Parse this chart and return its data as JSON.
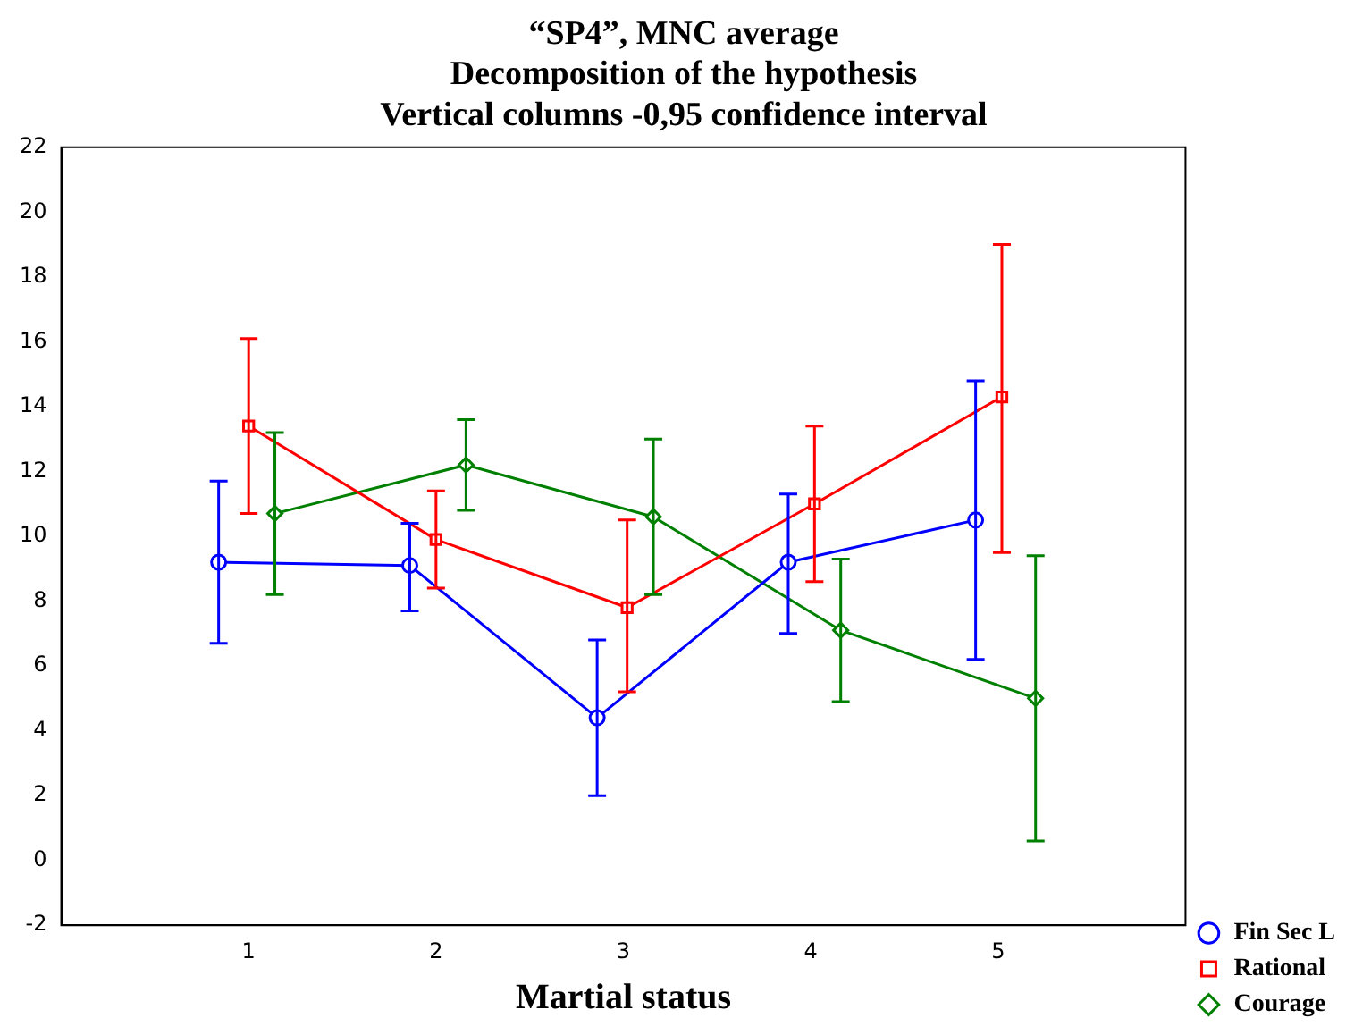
{
  "chart_data": {
    "type": "line",
    "title": "“SP4”, MNC average\nDecomposition of the hypothesis\nVertical columns -0,95 confidence interval",
    "xlabel": "Martial status",
    "xlim": [
      0,
      6
    ],
    "xticks": [
      1,
      2,
      3,
      4,
      5
    ],
    "ylim": [
      -2,
      22
    ],
    "yticks": [
      -2,
      0,
      2,
      4,
      6,
      8,
      10,
      12,
      14,
      16,
      18,
      20,
      22
    ],
    "legend": "bottom right",
    "series": [
      {
        "name": "Fin Sec L",
        "color": "#0000ff",
        "marker": "circle",
        "x": [
          0.84,
          1.86,
          2.86,
          3.88,
          4.88
        ],
        "values": [
          9.2,
          9.1,
          4.4,
          9.2,
          10.5
        ],
        "errors": [
          [
            6.7,
            11.7
          ],
          [
            7.7,
            10.4
          ],
          [
            2.0,
            6.8
          ],
          [
            7.0,
            11.3
          ],
          [
            6.2,
            14.8
          ]
        ]
      },
      {
        "name": "Rational",
        "color": "#ff0000",
        "marker": "square",
        "x": [
          1.0,
          2.0,
          3.02,
          4.02,
          5.02
        ],
        "values": [
          13.4,
          9.9,
          7.8,
          11.0,
          14.3
        ],
        "errors": [
          [
            10.7,
            16.1
          ],
          [
            8.4,
            11.4
          ],
          [
            5.2,
            10.5
          ],
          [
            8.6,
            13.4
          ],
          [
            9.5,
            19.0
          ]
        ]
      },
      {
        "name": "Courage",
        "color": "#008000",
        "marker": "diamond",
        "x": [
          1.14,
          2.16,
          3.16,
          4.16,
          5.2
        ],
        "values": [
          10.7,
          12.2,
          10.6,
          7.1,
          5.0
        ],
        "errors": [
          [
            8.2,
            13.2
          ],
          [
            10.8,
            13.6
          ],
          [
            8.2,
            13.0
          ],
          [
            4.9,
            9.3
          ],
          [
            0.6,
            9.4
          ]
        ]
      }
    ]
  }
}
